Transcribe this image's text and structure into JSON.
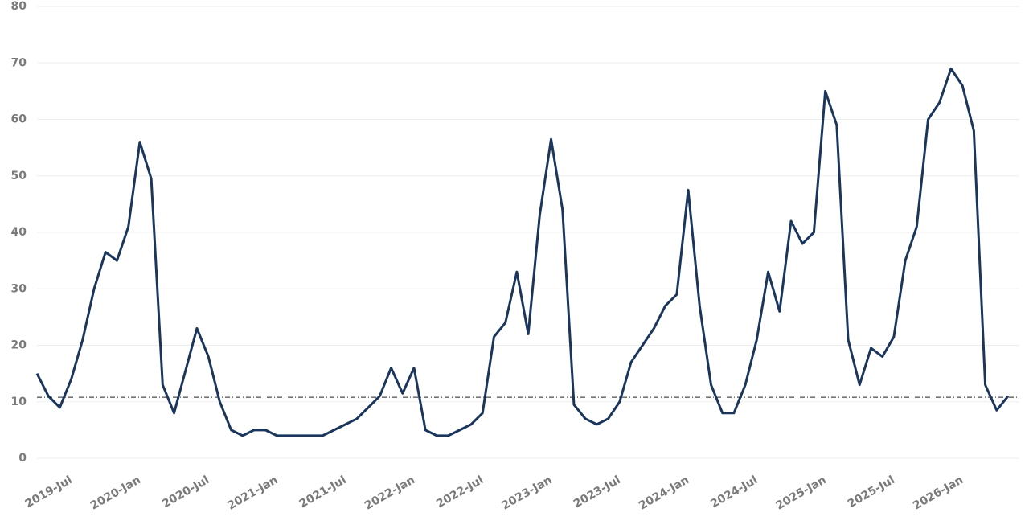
{
  "chart_data": {
    "type": "line",
    "categories": [
      null,
      null,
      null,
      "2019-Jul",
      null,
      null,
      null,
      null,
      null,
      "2020-Jan",
      null,
      null,
      null,
      null,
      null,
      "2020-Jul",
      null,
      null,
      null,
      null,
      null,
      "2021-Jan",
      null,
      null,
      null,
      null,
      null,
      "2021-Jul",
      null,
      null,
      null,
      null,
      null,
      "2022-Jan",
      null,
      null,
      null,
      null,
      null,
      "2022-Jul",
      null,
      null,
      null,
      null,
      null,
      "2023-Jan",
      null,
      null,
      null,
      null,
      null,
      "2023-Jul",
      null,
      null,
      null,
      null,
      null,
      "2024-Jan",
      null,
      null,
      null,
      null,
      null,
      "2024-Jul",
      null,
      null,
      null,
      null,
      null,
      "2025-Jan",
      null,
      null,
      null,
      null,
      null,
      "2025-Jul",
      null,
      null,
      null,
      null,
      null,
      "2026-Jan",
      null,
      null,
      null,
      null
    ],
    "series": [
      {
        "color": "#1b365d",
        "values": [
          15,
          11,
          9,
          14,
          21,
          30,
          36.5,
          35,
          41,
          56,
          49.5,
          13,
          8,
          15.5,
          23,
          18,
          10,
          5,
          4,
          5,
          5,
          4,
          4,
          4,
          4,
          4,
          5,
          6,
          7,
          9,
          11,
          16,
          11.5,
          16,
          5,
          4,
          4,
          5,
          6,
          8,
          21.5,
          24,
          33,
          22,
          43,
          56.5,
          44,
          9.5,
          7,
          6,
          7,
          10,
          17,
          20,
          23,
          27,
          29,
          47.5,
          27,
          13,
          8,
          8,
          13,
          21,
          33,
          26,
          42,
          38,
          40,
          65,
          59,
          21,
          13,
          19.5,
          18,
          21.5,
          35,
          41,
          60,
          63,
          69,
          66,
          58,
          13,
          8.5,
          11
        ]
      }
    ],
    "reference_line": 10.8,
    "ylim": [
      0,
      80
    ],
    "yticks": [
      0,
      10,
      20,
      30,
      40,
      50,
      60,
      70,
      80
    ],
    "grid": true
  }
}
